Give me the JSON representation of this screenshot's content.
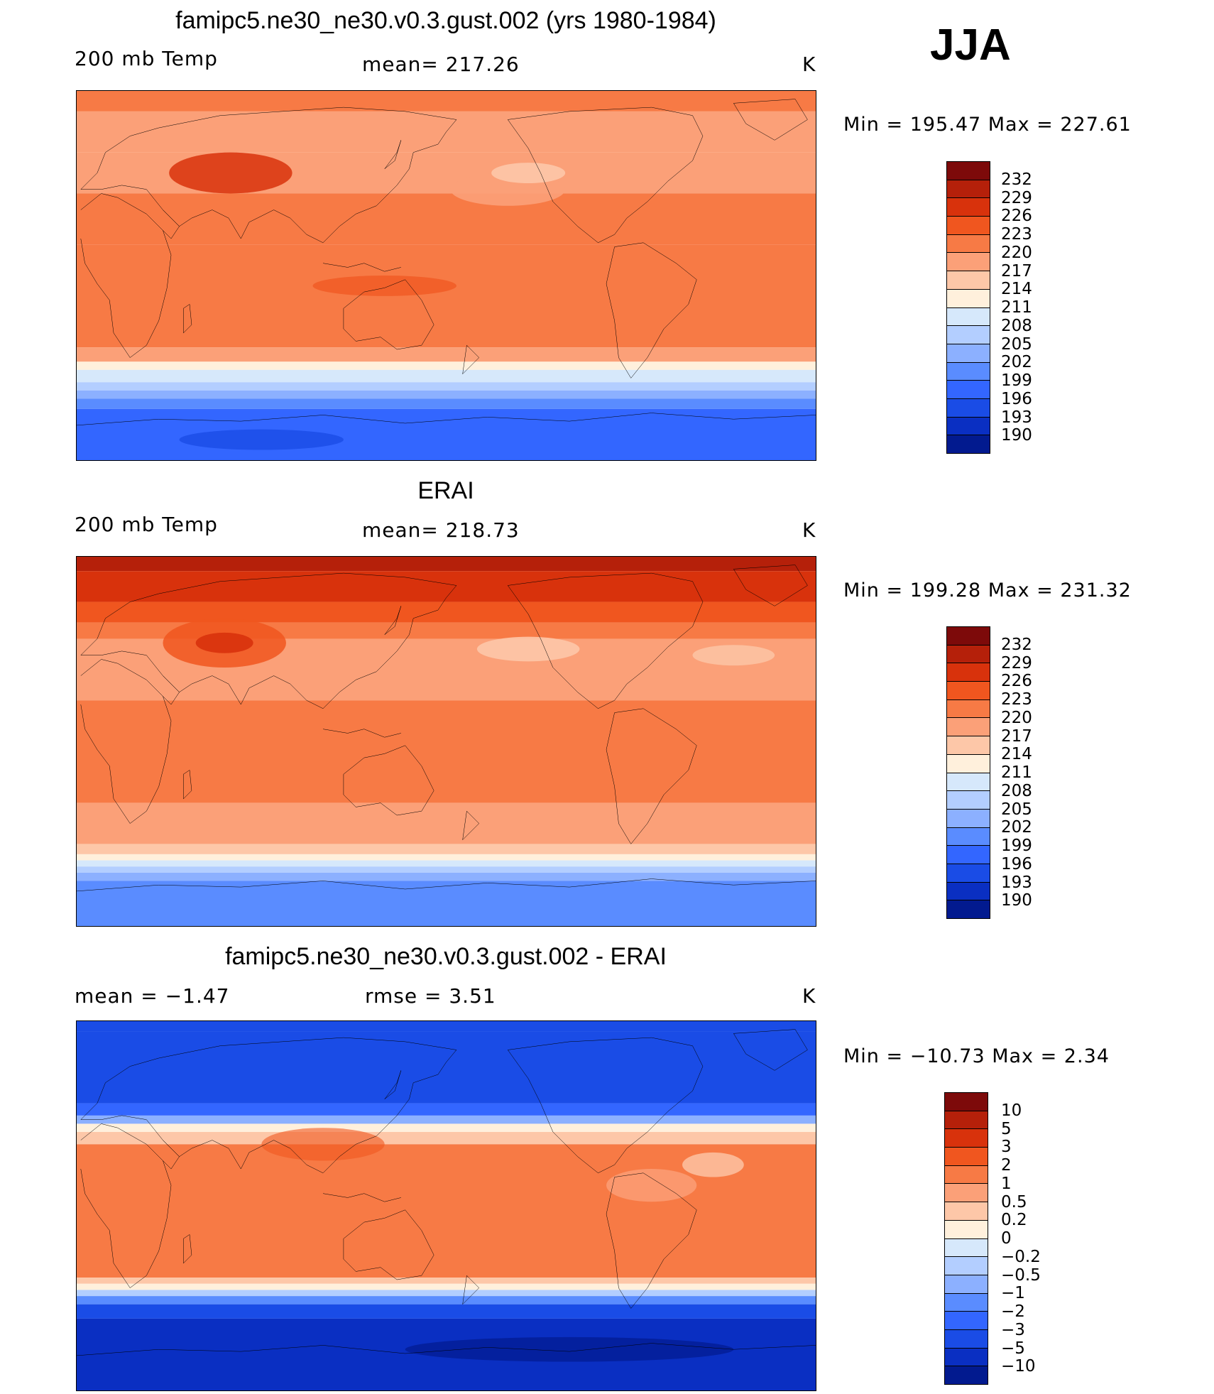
{
  "season": "JJA",
  "panels": [
    {
      "title": "famipc5.ne30_ne30.v0.3.gust.002 (yrs 1980-1984)",
      "left_label": "200 mb Temp",
      "center_label": "mean= 217.26",
      "units": "K",
      "minmax": "Min = 195.47 Max = 227.61",
      "colorbar_colors": [
        "#7d0a0a",
        "#b5200a",
        "#d8320c",
        "#f0561f",
        "#f77a45",
        "#fba078",
        "#fdc7a8",
        "#fff0dc",
        "#d6e8fb",
        "#b3ceff",
        "#8cb0ff",
        "#5a8cff",
        "#3366ff",
        "#1a4ce6",
        "#0a2fc2",
        "#021a8f"
      ],
      "colorbar_labels": [
        "232",
        "229",
        "226",
        "223",
        "220",
        "217",
        "214",
        "211",
        "208",
        "205",
        "202",
        "199",
        "196",
        "193",
        "190"
      ]
    },
    {
      "title": "ERAI",
      "left_label": "200 mb Temp",
      "center_label": "mean= 218.73",
      "units": "K",
      "minmax": "Min = 199.28 Max = 231.32",
      "colorbar_colors": [
        "#7d0a0a",
        "#b5200a",
        "#d8320c",
        "#f0561f",
        "#f77a45",
        "#fba078",
        "#fdc7a8",
        "#fff0dc",
        "#d6e8fb",
        "#b3ceff",
        "#8cb0ff",
        "#5a8cff",
        "#3366ff",
        "#1a4ce6",
        "#0a2fc2",
        "#021a8f"
      ],
      "colorbar_labels": [
        "232",
        "229",
        "226",
        "223",
        "220",
        "217",
        "214",
        "211",
        "208",
        "205",
        "202",
        "199",
        "196",
        "193",
        "190"
      ]
    },
    {
      "title": "famipc5.ne30_ne30.v0.3.gust.002 - ERAI",
      "left_label": "mean =   −1.47",
      "center_label": "rmse =     3.51",
      "units": "K",
      "minmax": "Min = −10.73 Max =     2.34",
      "colorbar_colors": [
        "#7d0a0a",
        "#b5200a",
        "#d8320c",
        "#f0561f",
        "#f77a45",
        "#fba078",
        "#fdc7a8",
        "#fff0dc",
        "#d6e8fb",
        "#b3ceff",
        "#8cb0ff",
        "#5a8cff",
        "#3366ff",
        "#1a4ce6",
        "#0a2fc2",
        "#021a8f"
      ],
      "colorbar_labels": [
        "10",
        "5",
        "3",
        "2",
        "1",
        "0.5",
        "0.2",
        "0",
        "−0.2",
        "−0.5",
        "−1",
        "−2",
        "−3",
        "−5",
        "−10"
      ]
    }
  ],
  "map_fields": {
    "model": [
      {
        "lat_top": 90,
        "lat_bottom": 80,
        "color": "#f77a45"
      },
      {
        "lat_top": 80,
        "lat_bottom": 60,
        "color": "#fba078"
      },
      {
        "lat_top": 60,
        "lat_bottom": 40,
        "color": "#fba078"
      },
      {
        "lat_top": 40,
        "lat_bottom": 15,
        "color": "#f77a45"
      },
      {
        "lat_top": 15,
        "lat_bottom": -35,
        "color": "#f77a45"
      },
      {
        "lat_top": -35,
        "lat_bottom": -42,
        "color": "#fba078"
      },
      {
        "lat_top": -42,
        "lat_bottom": -46,
        "color": "#fff0dc"
      },
      {
        "lat_top": -46,
        "lat_bottom": -52,
        "color": "#d6e8fb"
      },
      {
        "lat_top": -52,
        "lat_bottom": -56,
        "color": "#b3ceff"
      },
      {
        "lat_top": -56,
        "lat_bottom": -60,
        "color": "#8cb0ff"
      },
      {
        "lat_top": -60,
        "lat_bottom": -65,
        "color": "#5a8cff"
      },
      {
        "lat_top": -65,
        "lat_bottom": -90,
        "color": "#3366ff"
      }
    ],
    "obs": [
      {
        "lat_top": 90,
        "lat_bottom": 83,
        "color": "#b5200a"
      },
      {
        "lat_top": 83,
        "lat_bottom": 68,
        "color": "#d8320c"
      },
      {
        "lat_top": 68,
        "lat_bottom": 58,
        "color": "#f0561f"
      },
      {
        "lat_top": 58,
        "lat_bottom": 50,
        "color": "#f77a45"
      },
      {
        "lat_top": 50,
        "lat_bottom": 20,
        "color": "#fba078"
      },
      {
        "lat_top": 20,
        "lat_bottom": -30,
        "color": "#f77a45"
      },
      {
        "lat_top": -30,
        "lat_bottom": -50,
        "color": "#fba078"
      },
      {
        "lat_top": -50,
        "lat_bottom": -55,
        "color": "#fdc7a8"
      },
      {
        "lat_top": -55,
        "lat_bottom": -58,
        "color": "#fff0dc"
      },
      {
        "lat_top": -58,
        "lat_bottom": -61,
        "color": "#d6e8fb"
      },
      {
        "lat_top": -61,
        "lat_bottom": -64,
        "color": "#b3ceff"
      },
      {
        "lat_top": -64,
        "lat_bottom": -68,
        "color": "#8cb0ff"
      },
      {
        "lat_top": -68,
        "lat_bottom": -90,
        "color": "#5a8cff"
      }
    ],
    "diff": [
      {
        "lat_top": 90,
        "lat_bottom": 85,
        "color": "#1a4ce6"
      },
      {
        "lat_top": 85,
        "lat_bottom": 50,
        "color": "#1a4ce6"
      },
      {
        "lat_top": 50,
        "lat_bottom": 44,
        "color": "#3366ff"
      },
      {
        "lat_top": 44,
        "lat_bottom": 40,
        "color": "#8cb0ff"
      },
      {
        "lat_top": 40,
        "lat_bottom": 36,
        "color": "#fff0dc"
      },
      {
        "lat_top": 36,
        "lat_bottom": 30,
        "color": "#fdc7a8"
      },
      {
        "lat_top": 30,
        "lat_bottom": -35,
        "color": "#f77a45"
      },
      {
        "lat_top": -35,
        "lat_bottom": -38,
        "color": "#fdc7a8"
      },
      {
        "lat_top": -38,
        "lat_bottom": -41,
        "color": "#fff0dc"
      },
      {
        "lat_top": -41,
        "lat_bottom": -44,
        "color": "#b3ceff"
      },
      {
        "lat_top": -44,
        "lat_bottom": -48,
        "color": "#5a8cff"
      },
      {
        "lat_top": -48,
        "lat_bottom": -55,
        "color": "#1a4ce6"
      },
      {
        "lat_top": -55,
        "lat_bottom": -90,
        "color": "#0a2fc2"
      }
    ]
  }
}
